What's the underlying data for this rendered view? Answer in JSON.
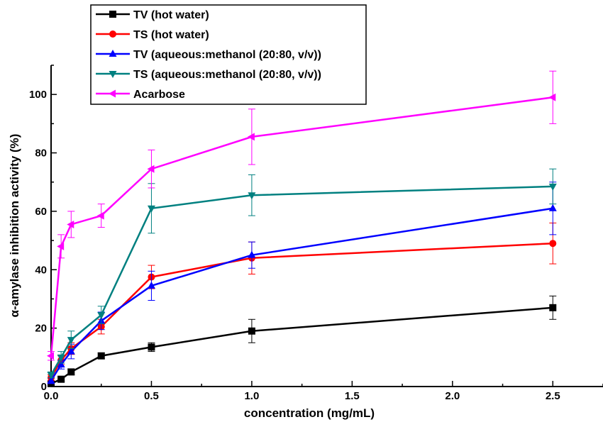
{
  "chart_data": {
    "type": "line",
    "xlabel": "concentration (mg/mL)",
    "ylabel": "α-amylase inhibition activity (%)",
    "xlim": [
      0,
      2.75
    ],
    "ylim": [
      0,
      110
    ],
    "x_ticks": [
      "0.0",
      "0.5",
      "1.0",
      "1.5",
      "2.0",
      "2.5"
    ],
    "y_ticks": [
      "0",
      "20",
      "40",
      "60",
      "80",
      "100"
    ],
    "grid": false,
    "legend_position": "top-left",
    "series": [
      {
        "name": "TV (hot water)",
        "color": "#000000",
        "marker": "square",
        "x": [
          0,
          0.05,
          0.1,
          0.25,
          0.5,
          1.0,
          2.5
        ],
        "y": [
          1,
          2.5,
          5,
          10.5,
          13.5,
          19,
          27
        ],
        "error": [
          0.5,
          0.8,
          1,
          1,
          1.5,
          4,
          4
        ]
      },
      {
        "name": "TS (hot water)",
        "color": "#ff0000",
        "marker": "circle",
        "x": [
          0,
          0.05,
          0.1,
          0.25,
          0.5,
          1.0,
          2.5
        ],
        "y": [
          3,
          9,
          13,
          20.5,
          37.5,
          44,
          49
        ],
        "error": [
          1,
          1.5,
          2,
          2.5,
          4,
          5.5,
          7
        ]
      },
      {
        "name": "TV (aqueous:methanol (20:80, v/v))",
        "color": "#0000ff",
        "marker": "triangle-up",
        "x": [
          0,
          0.05,
          0.1,
          0.25,
          0.5,
          1.0,
          2.5
        ],
        "y": [
          2,
          7.5,
          12,
          22.5,
          34.5,
          45,
          61
        ],
        "error": [
          1,
          1.5,
          2.5,
          3,
          5,
          4.5,
          9
        ]
      },
      {
        "name": "TS (aqueous:methanol (20:80, v/v))",
        "color": "#008080",
        "marker": "triangle-down",
        "x": [
          0,
          0.05,
          0.1,
          0.25,
          0.5,
          1.0,
          2.5
        ],
        "y": [
          4,
          10,
          16,
          24.5,
          61,
          65.5,
          68.5
        ],
        "error": [
          1,
          2,
          3,
          3,
          8.5,
          7,
          6
        ]
      },
      {
        "name": "Acarbose",
        "color": "#ff00ff",
        "marker": "triangle-left",
        "x": [
          0,
          0.05,
          0.1,
          0.25,
          0.5,
          1.0,
          2.5
        ],
        "y": [
          10.5,
          48,
          55.5,
          58.5,
          74.5,
          85.5,
          99
        ],
        "error": [
          1.5,
          4,
          4.5,
          4,
          6.5,
          9.5,
          9
        ]
      }
    ]
  }
}
